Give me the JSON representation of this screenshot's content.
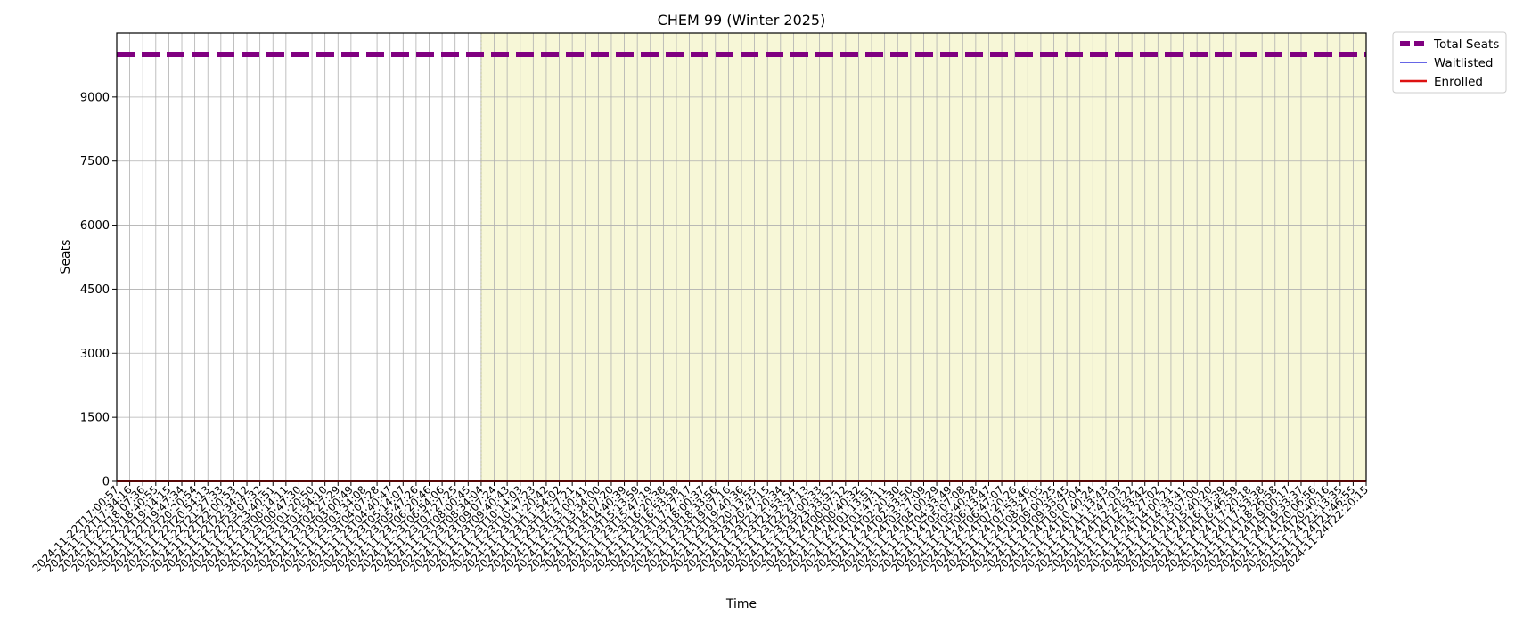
{
  "chart_data": {
    "type": "line",
    "title": "CHEM 99 (Winter 2025)",
    "xlabel": "Time",
    "ylabel": "Seats",
    "ylim": [
      0,
      10500
    ],
    "yticks": [
      0,
      1500,
      3000,
      4500,
      6000,
      7500,
      9000
    ],
    "grid": true,
    "legend_position": "outside-top-right",
    "x_first": "2024-11-22T17:00:57",
    "x_last": "2024-11-24T22:20:15",
    "x_tick_count": 97,
    "shaded_region_start_index": 28,
    "shaded_color": "#f7f7d7",
    "series": [
      {
        "name": "Total Seats",
        "color": "#800080",
        "style": "dashed",
        "value": 10000
      },
      {
        "name": "Waitlisted",
        "color": "#3333dd",
        "style": "solid",
        "value": 0
      },
      {
        "name": "Enrolled",
        "color": "#dd1111",
        "style": "solid",
        "value": 0
      }
    ]
  }
}
